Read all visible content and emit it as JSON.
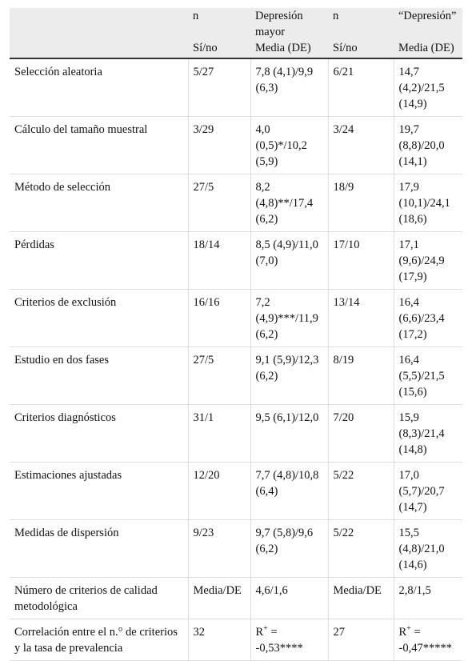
{
  "table": {
    "columns": [
      {
        "top": "n",
        "bottom": "Sí/no"
      },
      {
        "top": "Depresión mayor",
        "bottom": "Media (DE)"
      },
      {
        "top": "n",
        "bottom": "Sí/no"
      },
      {
        "top": "“Depresión”",
        "bottom": "Media (DE)"
      }
    ],
    "rows": [
      [
        "Selección aleatoria",
        "5/27",
        "7,8 (4,1)/9,9 (6,3)",
        "6/21",
        "14,7 (4,2)/21,5 (14,9)"
      ],
      [
        "Cálculo del tamaño muestral",
        "3/29",
        "4,0 (0,5)*/10,2 (5,9)",
        "3/24",
        "19,7 (8,8)/20,0 (14,1)"
      ],
      [
        "Método de selección",
        "27/5",
        "8,2 (4,8)**/17,4 (6,2)",
        "18/9",
        "17,9 (10,1)/24,1 (18,6)"
      ],
      [
        "Pérdidas",
        "18/14",
        "8,5 (4,9)/11,0 (7,0)",
        "17/10",
        "17,1 (9,6)/24,9 (17,9)"
      ],
      [
        "Criterios de exclusión",
        "16/16",
        "7,2 (4,9)***/11,9 (6,2)",
        "13/14",
        "16,4 (6,6)/23,4 (17,2)"
      ],
      [
        "Estudio en dos fases",
        "27/5",
        "9,1 (5,9)/12,3 (6,2)",
        "8/19",
        "16,4 (5,5)/21,5 (15,6)"
      ],
      [
        "Criterios diagnósticos",
        "31/1",
        "9,5 (6,1)/12,0",
        "7/20",
        "15,9 (8,3)/21,4 (14,8)"
      ],
      [
        "Estimaciones ajustadas",
        "12/20",
        "7,7 (4,8)/10,8 (6,4)",
        "5/22",
        "17,0 (5,7)/20,7 (14,7)"
      ],
      [
        "Medidas de dispersión",
        "9/23",
        "9,7 (5,8)/9,6 (6,2)",
        "5/22",
        "15,5 (4,8)/21,0 (14,6)"
      ],
      [
        "Número de criterios de calidad metodológica",
        "Media/DE",
        "4,6/1,6",
        "Media/DE",
        "2,8/1,5"
      ],
      [
        "Correlación entre el n.° de criterios y la tasa de prevalencia",
        "32",
        {
          "base": "R",
          "sup": "+",
          "rest": " = -0,53****"
        },
        "27",
        {
          "base": "R",
          "sup": "+",
          "rest": " = -0,47*****"
        }
      ]
    ]
  }
}
